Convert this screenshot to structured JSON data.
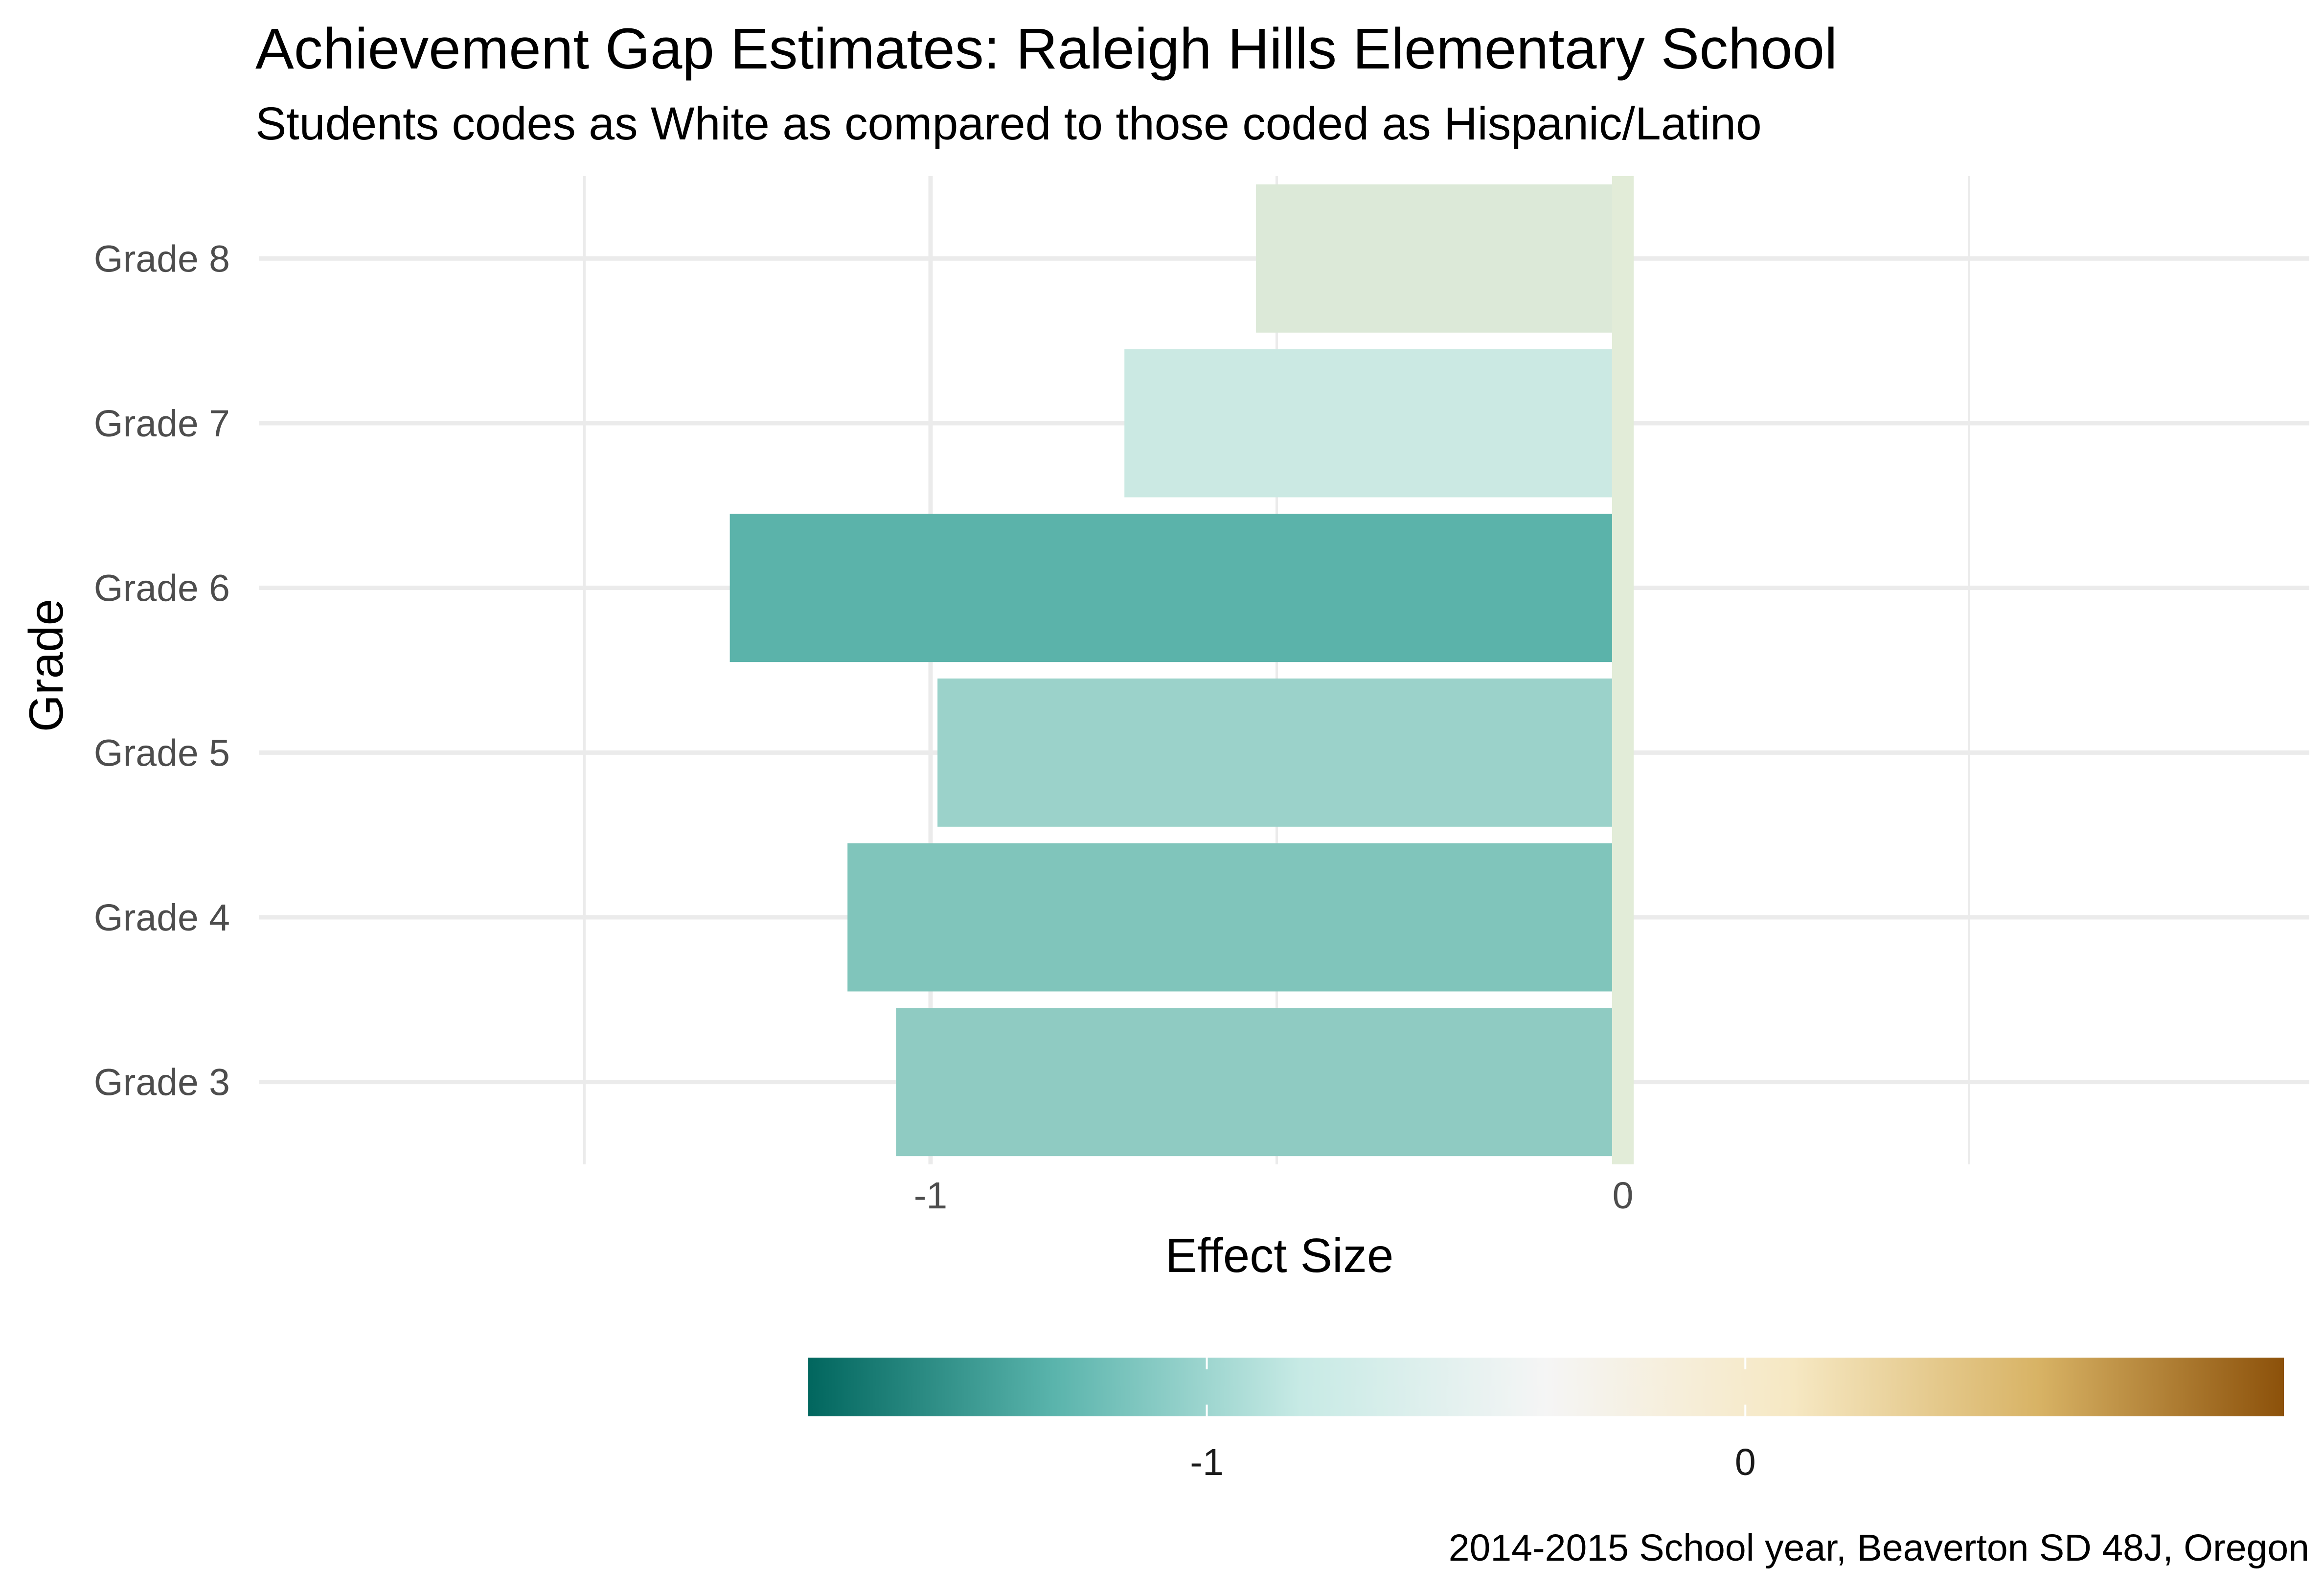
{
  "title": "Achievement Gap Estimates: Raleigh Hills Elementary School",
  "subtitle": "Students codes as White as compared to those coded as Hispanic/Latino",
  "caption": "2014-2015 School year, Beaverton SD 48J, Oregon",
  "chart_data": {
    "type": "bar",
    "orientation": "horizontal",
    "xlabel": "Effect Size",
    "ylabel": "Grade",
    "xlim": [
      -1.97,
      0.97
    ],
    "x_ticks": [
      -1,
      0
    ],
    "x_tick_labels": [
      "-1",
      "0"
    ],
    "grid": true,
    "categories": [
      "Grade 3",
      "Grade 4",
      "Grade 5",
      "Grade 6",
      "Grade 7",
      "Grade 8"
    ],
    "values": [
      -1.05,
      -1.12,
      -0.99,
      -1.29,
      -0.72,
      -0.53
    ],
    "colors": [
      "#8fcbc2",
      "#80c5bb",
      "#9bd2ca",
      "#5bb3aa",
      "#cbe9e3",
      "#dce9d8"
    ],
    "reference_line": {
      "x": 0,
      "color": "#e2ecd8"
    },
    "legend": {
      "type": "colorbar",
      "position": "bottom",
      "range": [
        -1.74,
        1.0
      ],
      "ticks": [
        -1,
        0
      ],
      "tick_labels": [
        "-1",
        "0"
      ],
      "palette": [
        "#01665e",
        "#5ab4ac",
        "#c7eae5",
        "#f5f5f5",
        "#f6e8c3",
        "#d8b365",
        "#8c510a"
      ]
    }
  }
}
